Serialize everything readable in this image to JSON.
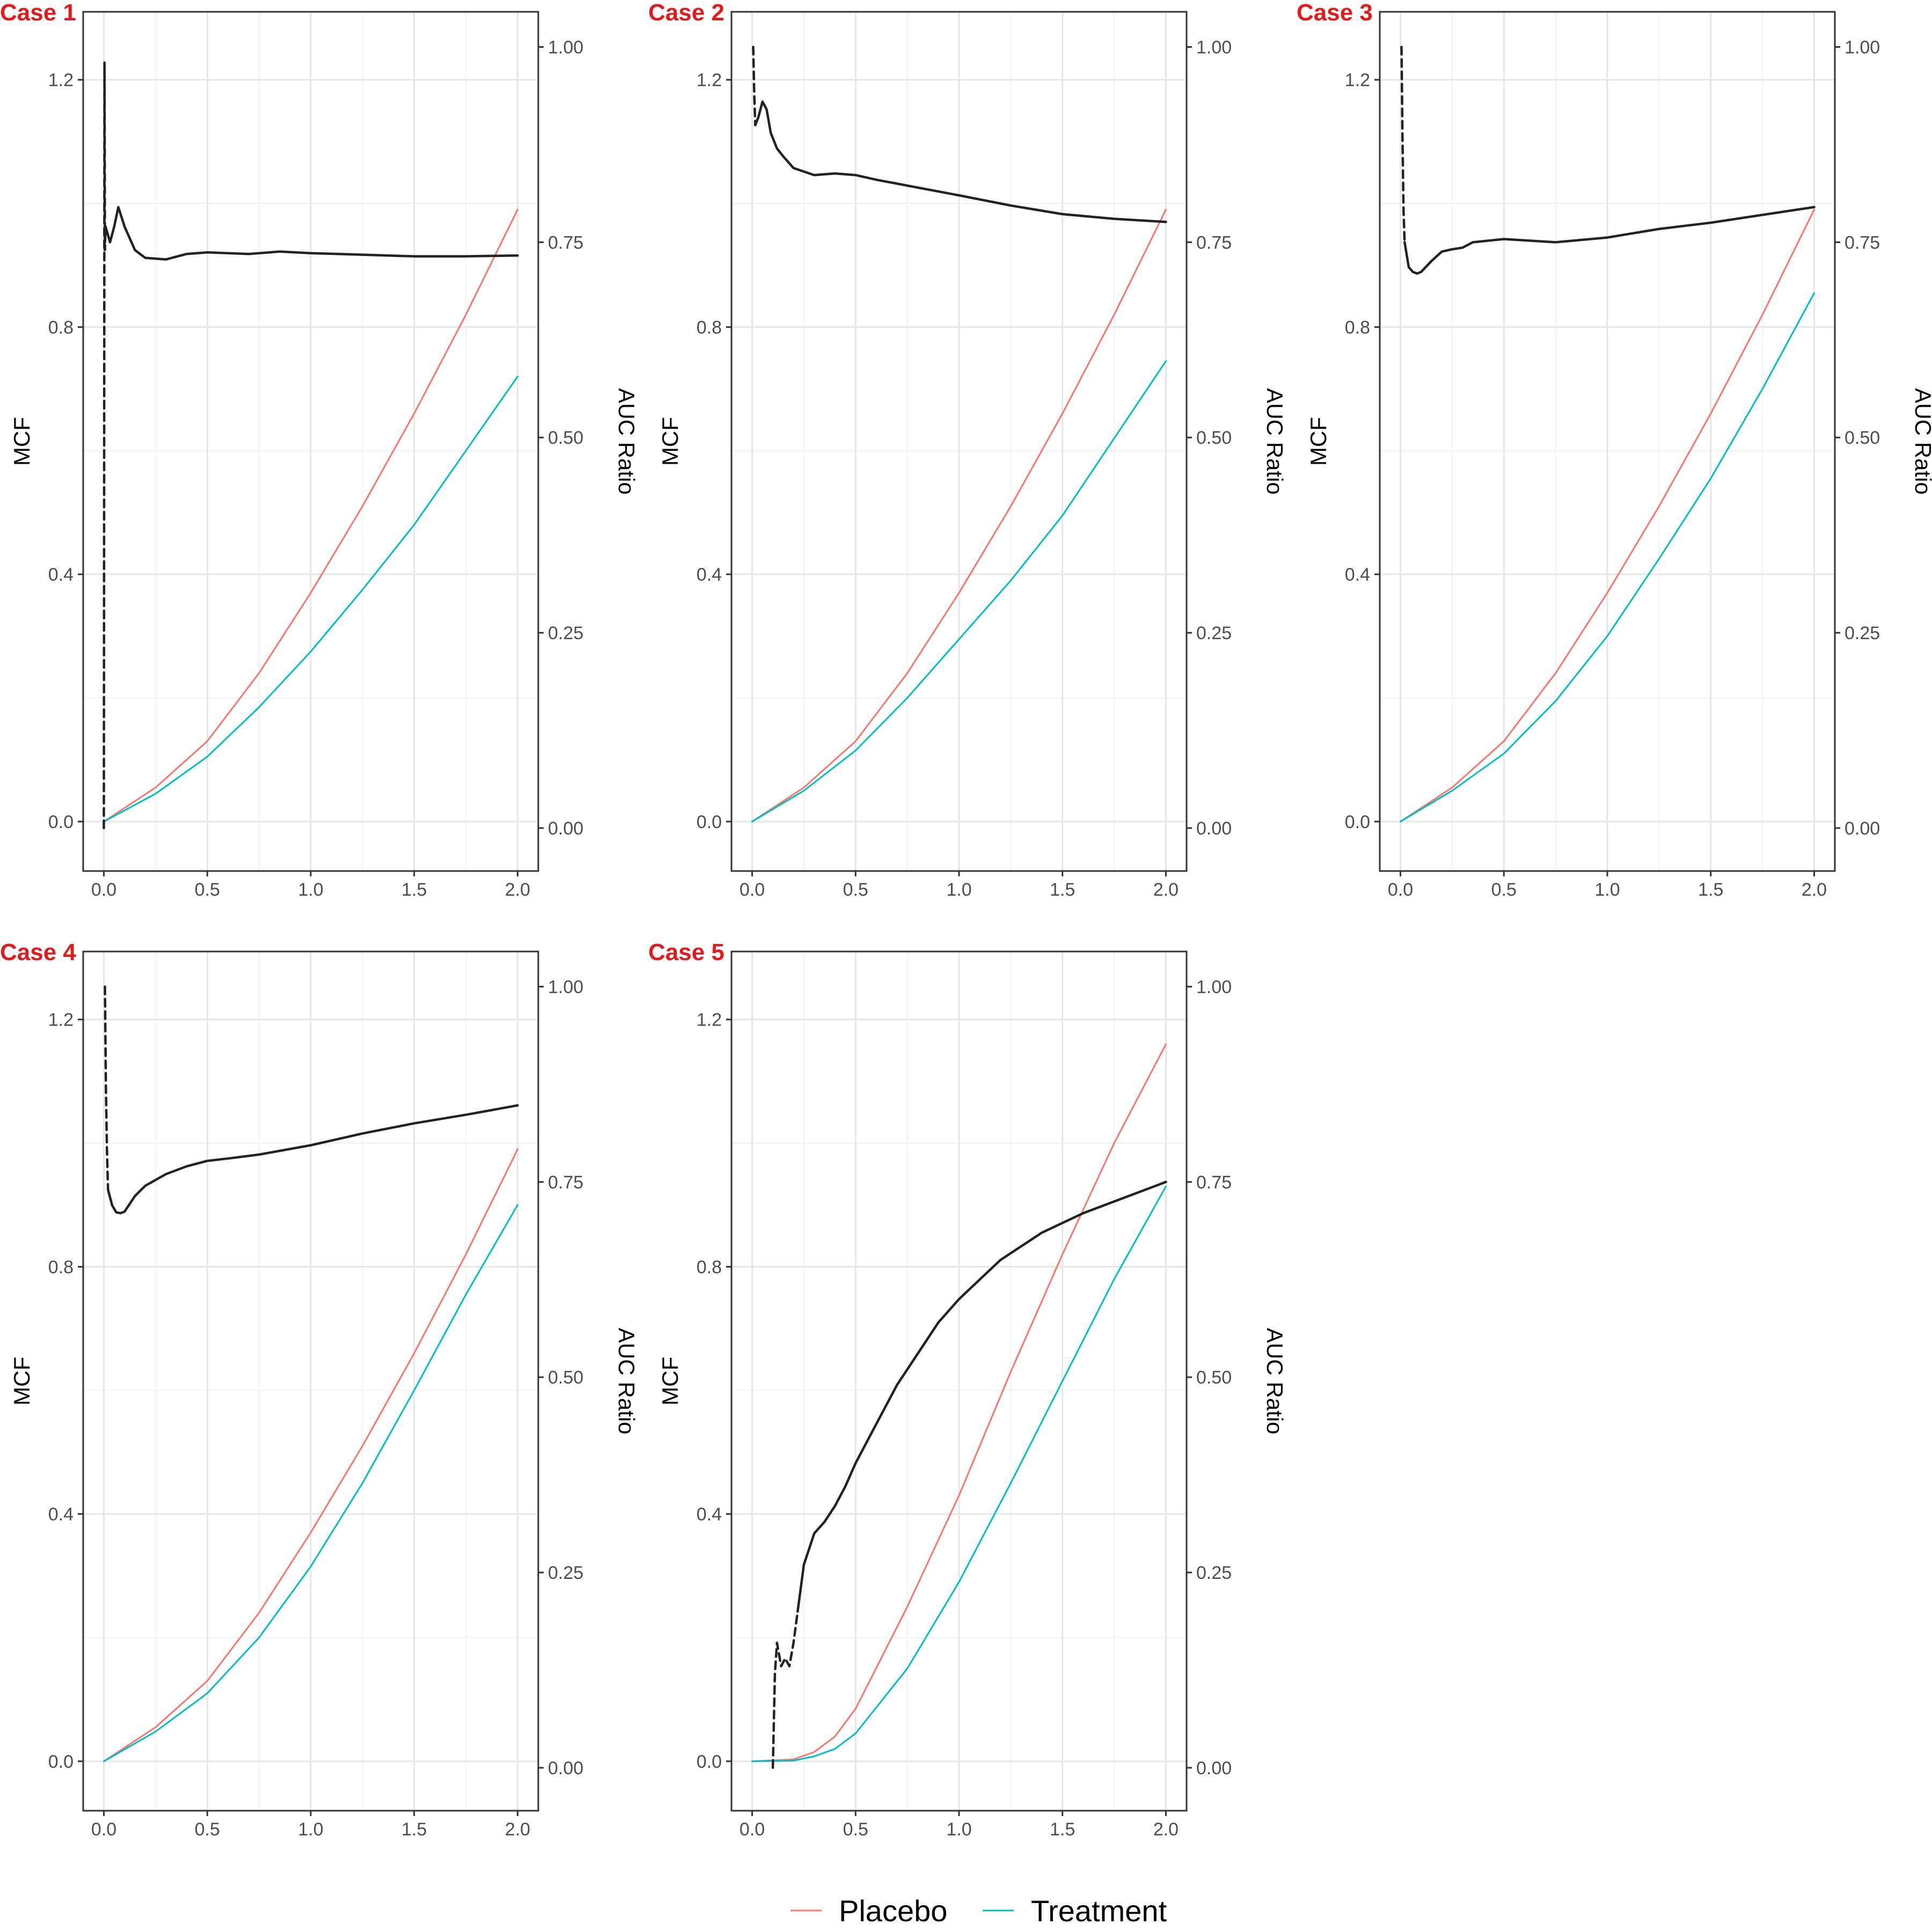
{
  "colors": {
    "placebo": "#F8766D",
    "treatment": "#00BFC4",
    "auc": "#222222",
    "grid_major": "#E6E6E6",
    "grid_minor": "#F2F2F2",
    "frame": "#333333",
    "tag": "#E31A1C"
  },
  "legend": {
    "position": "bottom",
    "items": [
      {
        "name": "Placebo",
        "color": "#F8766D"
      },
      {
        "name": "Treatment",
        "color": "#00BFC4"
      }
    ]
  },
  "chart_data": [
    {
      "tag": "Case 1",
      "type": "line",
      "xlabel": "",
      "ylabel": "MCF",
      "y2label": "AUC Ratio",
      "xlim": [
        -0.1,
        2.1
      ],
      "ylim": [
        -0.08,
        1.31
      ],
      "y2lim": [
        -0.055,
        1.045
      ],
      "x_ticks": [
        0.0,
        0.5,
        1.0,
        1.5,
        2.0
      ],
      "x_tick_labels": [
        "0.0",
        "0.5",
        "1.0",
        "1.5",
        "2.0"
      ],
      "y_ticks": [
        0.0,
        0.4,
        0.8,
        1.2
      ],
      "y_tick_labels": [
        "0.0",
        "0.4",
        "0.8",
        "1.2"
      ],
      "y2_ticks": [
        0.0,
        0.25,
        0.5,
        0.75,
        1.0
      ],
      "y2_tick_labels": [
        "0.00",
        "0.25",
        "0.50",
        "0.75",
        "1.00"
      ],
      "grid": true,
      "series": [
        {
          "name": "Placebo",
          "axis": "left",
          "x": [
            0,
            0.25,
            0.5,
            0.75,
            1.0,
            1.25,
            1.5,
            1.75,
            2.0
          ],
          "values": [
            0,
            0.055,
            0.13,
            0.24,
            0.37,
            0.51,
            0.66,
            0.82,
            0.99
          ]
        },
        {
          "name": "Treatment",
          "axis": "left",
          "x": [
            0,
            0.25,
            0.5,
            0.75,
            1.0,
            1.25,
            1.5,
            1.75,
            2.0
          ],
          "values": [
            0,
            0.045,
            0.105,
            0.185,
            0.275,
            0.375,
            0.48,
            0.6,
            0.72
          ]
        },
        {
          "name": "AUC Ratio (early, dashed)",
          "axis": "right",
          "dash": true,
          "x": [
            0,
            0.003,
            0.005,
            0.008
          ],
          "values": [
            0,
            0.98,
            0.74,
            0.77
          ]
        },
        {
          "name": "AUC Ratio",
          "axis": "right",
          "x": [
            0.008,
            0.03,
            0.05,
            0.07,
            0.1,
            0.15,
            0.2,
            0.3,
            0.4,
            0.5,
            0.7,
            0.85,
            1.0,
            1.25,
            1.5,
            1.75,
            2.0
          ],
          "values": [
            0.77,
            0.75,
            0.77,
            0.795,
            0.77,
            0.74,
            0.73,
            0.728,
            0.735,
            0.737,
            0.735,
            0.738,
            0.736,
            0.734,
            0.732,
            0.732,
            0.733
          ]
        }
      ]
    },
    {
      "tag": "Case 2",
      "type": "line",
      "xlabel": "",
      "ylabel": "MCF",
      "y2label": "AUC Ratio",
      "xlim": [
        -0.1,
        2.1
      ],
      "ylim": [
        -0.08,
        1.31
      ],
      "y2lim": [
        -0.055,
        1.045
      ],
      "x_ticks": [
        0.0,
        0.5,
        1.0,
        1.5,
        2.0
      ],
      "x_tick_labels": [
        "0.0",
        "0.5",
        "1.0",
        "1.5",
        "2.0"
      ],
      "y_ticks": [
        0.0,
        0.4,
        0.8,
        1.2
      ],
      "y_tick_labels": [
        "0.0",
        "0.4",
        "0.8",
        "1.2"
      ],
      "y2_ticks": [
        0.0,
        0.25,
        0.5,
        0.75,
        1.0
      ],
      "y2_tick_labels": [
        "0.00",
        "0.25",
        "0.50",
        "0.75",
        "1.00"
      ],
      "grid": true,
      "series": [
        {
          "name": "Placebo",
          "axis": "left",
          "x": [
            0,
            0.25,
            0.5,
            0.75,
            1.0,
            1.25,
            1.5,
            1.75,
            2.0
          ],
          "values": [
            0,
            0.055,
            0.13,
            0.24,
            0.37,
            0.51,
            0.66,
            0.82,
            0.99
          ]
        },
        {
          "name": "Treatment",
          "axis": "left",
          "x": [
            0,
            0.25,
            0.5,
            0.75,
            1.0,
            1.25,
            1.5,
            1.75,
            2.0
          ],
          "values": [
            0,
            0.05,
            0.115,
            0.2,
            0.295,
            0.39,
            0.495,
            0.62,
            0.745
          ]
        },
        {
          "name": "AUC Ratio (early, dashed)",
          "axis": "right",
          "dash": true,
          "x": [
            0.005,
            0.01,
            0.015
          ],
          "values": [
            1.0,
            0.94,
            0.9
          ]
        },
        {
          "name": "AUC Ratio",
          "axis": "right",
          "x": [
            0.015,
            0.03,
            0.05,
            0.07,
            0.09,
            0.12,
            0.15,
            0.2,
            0.3,
            0.4,
            0.5,
            0.6,
            0.8,
            1.0,
            1.25,
            1.5,
            1.75,
            2.0
          ],
          "values": [
            0.9,
            0.91,
            0.93,
            0.92,
            0.89,
            0.87,
            0.86,
            0.845,
            0.836,
            0.838,
            0.836,
            0.83,
            0.82,
            0.81,
            0.797,
            0.786,
            0.78,
            0.776
          ]
        }
      ]
    },
    {
      "tag": "Case 3",
      "type": "line",
      "xlabel": "",
      "ylabel": "MCF",
      "y2label": "AUC Ratio",
      "xlim": [
        -0.1,
        2.1
      ],
      "ylim": [
        -0.08,
        1.31
      ],
      "y2lim": [
        -0.055,
        1.045
      ],
      "x_ticks": [
        0.0,
        0.5,
        1.0,
        1.5,
        2.0
      ],
      "x_tick_labels": [
        "0.0",
        "0.5",
        "1.0",
        "1.5",
        "2.0"
      ],
      "y_ticks": [
        0.0,
        0.4,
        0.8,
        1.2
      ],
      "y_tick_labels": [
        "0.0",
        "0.4",
        "0.8",
        "1.2"
      ],
      "y2_ticks": [
        0.0,
        0.25,
        0.5,
        0.75,
        1.0
      ],
      "y2_tick_labels": [
        "0.00",
        "0.25",
        "0.50",
        "0.75",
        "1.00"
      ],
      "grid": true,
      "series": [
        {
          "name": "Placebo",
          "axis": "left",
          "x": [
            0,
            0.25,
            0.5,
            0.75,
            1.0,
            1.25,
            1.5,
            1.75,
            2.0
          ],
          "values": [
            0,
            0.055,
            0.13,
            0.24,
            0.37,
            0.51,
            0.66,
            0.82,
            0.99
          ]
        },
        {
          "name": "Treatment",
          "axis": "left",
          "x": [
            0,
            0.25,
            0.5,
            0.75,
            1.0,
            1.25,
            1.5,
            1.75,
            2.0
          ],
          "values": [
            0,
            0.05,
            0.11,
            0.195,
            0.3,
            0.425,
            0.555,
            0.7,
            0.855
          ]
        },
        {
          "name": "AUC Ratio (early, dashed)",
          "axis": "right",
          "dash": true,
          "x": [
            0.005,
            0.01,
            0.015,
            0.02
          ],
          "values": [
            1.0,
            0.88,
            0.79,
            0.75
          ]
        },
        {
          "name": "AUC Ratio",
          "axis": "right",
          "x": [
            0.02,
            0.04,
            0.06,
            0.08,
            0.1,
            0.15,
            0.2,
            0.25,
            0.3,
            0.35,
            0.5,
            0.75,
            1.0,
            1.25,
            1.5,
            1.75,
            2.0
          ],
          "values": [
            0.75,
            0.718,
            0.712,
            0.71,
            0.712,
            0.726,
            0.738,
            0.741,
            0.743,
            0.75,
            0.754,
            0.75,
            0.756,
            0.767,
            0.775,
            0.785,
            0.795
          ]
        }
      ]
    },
    {
      "tag": "Case 4",
      "type": "line",
      "xlabel": "",
      "ylabel": "MCF",
      "y2label": "AUC Ratio",
      "xlim": [
        -0.1,
        2.1
      ],
      "ylim": [
        -0.08,
        1.31
      ],
      "y2lim": [
        -0.055,
        1.045
      ],
      "x_ticks": [
        0.0,
        0.5,
        1.0,
        1.5,
        2.0
      ],
      "x_tick_labels": [
        "0.0",
        "0.5",
        "1.0",
        "1.5",
        "2.0"
      ],
      "y_ticks": [
        0.0,
        0.4,
        0.8,
        1.2
      ],
      "y_tick_labels": [
        "0.0",
        "0.4",
        "0.8",
        "1.2"
      ],
      "y2_ticks": [
        0.0,
        0.25,
        0.5,
        0.75,
        1.0
      ],
      "y2_tick_labels": [
        "0.00",
        "0.25",
        "0.50",
        "0.75",
        "1.00"
      ],
      "grid": true,
      "series": [
        {
          "name": "Placebo",
          "axis": "left",
          "x": [
            0,
            0.25,
            0.5,
            0.75,
            1.0,
            1.25,
            1.5,
            1.75,
            2.0
          ],
          "values": [
            0,
            0.055,
            0.13,
            0.24,
            0.37,
            0.51,
            0.66,
            0.82,
            0.99
          ]
        },
        {
          "name": "Treatment",
          "axis": "left",
          "x": [
            0,
            0.25,
            0.5,
            0.75,
            1.0,
            1.25,
            1.5,
            1.75,
            2.0
          ],
          "values": [
            0,
            0.048,
            0.11,
            0.2,
            0.315,
            0.45,
            0.6,
            0.755,
            0.9
          ]
        },
        {
          "name": "AUC Ratio (early, dashed)",
          "axis": "right",
          "dash": true,
          "x": [
            0.005,
            0.01,
            0.015,
            0.02
          ],
          "values": [
            1.0,
            0.87,
            0.79,
            0.74
          ]
        },
        {
          "name": "AUC Ratio",
          "axis": "right",
          "x": [
            0.02,
            0.04,
            0.06,
            0.08,
            0.1,
            0.15,
            0.2,
            0.3,
            0.4,
            0.5,
            0.6,
            0.75,
            1.0,
            1.25,
            1.5,
            1.75,
            2.0
          ],
          "values": [
            0.74,
            0.72,
            0.711,
            0.71,
            0.712,
            0.732,
            0.745,
            0.76,
            0.77,
            0.777,
            0.78,
            0.785,
            0.797,
            0.812,
            0.825,
            0.836,
            0.848
          ]
        }
      ]
    },
    {
      "tag": "Case 5",
      "type": "line",
      "xlabel": "",
      "ylabel": "MCF",
      "y2label": "AUC Ratio",
      "xlim": [
        -0.1,
        2.1
      ],
      "ylim": [
        -0.08,
        1.31
      ],
      "y2lim": [
        -0.055,
        1.045
      ],
      "x_ticks": [
        0.0,
        0.5,
        1.0,
        1.5,
        2.0
      ],
      "x_tick_labels": [
        "0.0",
        "0.5",
        "1.0",
        "1.5",
        "2.0"
      ],
      "y_ticks": [
        0.0,
        0.4,
        0.8,
        1.2
      ],
      "y_tick_labels": [
        "0.0",
        "0.4",
        "0.8",
        "1.2"
      ],
      "y2_ticks": [
        0.0,
        0.25,
        0.5,
        0.75,
        1.0
      ],
      "y2_tick_labels": [
        "0.00",
        "0.25",
        "0.50",
        "0.75",
        "1.00"
      ],
      "grid": true,
      "series": [
        {
          "name": "Placebo",
          "axis": "left",
          "x": [
            0,
            0.2,
            0.3,
            0.4,
            0.5,
            0.75,
            1.0,
            1.25,
            1.5,
            1.75,
            2.0
          ],
          "values": [
            0,
            0.003,
            0.015,
            0.04,
            0.085,
            0.25,
            0.43,
            0.63,
            0.82,
            1.0,
            1.16
          ]
        },
        {
          "name": "Treatment",
          "axis": "left",
          "x": [
            0,
            0.2,
            0.3,
            0.4,
            0.5,
            0.75,
            1.0,
            1.25,
            1.5,
            1.75,
            2.0
          ],
          "values": [
            0,
            0.001,
            0.008,
            0.02,
            0.045,
            0.15,
            0.29,
            0.45,
            0.615,
            0.78,
            0.93
          ]
        },
        {
          "name": "AUC Ratio (early, dashed)",
          "axis": "right",
          "dash": true,
          "x": [
            0.1,
            0.11,
            0.12,
            0.14,
            0.16,
            0.18,
            0.2,
            0.22
          ],
          "values": [
            0,
            0.12,
            0.16,
            0.13,
            0.14,
            0.13,
            0.16,
            0.2
          ]
        },
        {
          "name": "AUC Ratio",
          "axis": "right",
          "x": [
            0.22,
            0.25,
            0.3,
            0.35,
            0.4,
            0.45,
            0.5,
            0.6,
            0.7,
            0.8,
            0.9,
            1.0,
            1.2,
            1.4,
            1.6,
            1.8,
            2.0
          ],
          "values": [
            0.2,
            0.26,
            0.3,
            0.315,
            0.335,
            0.36,
            0.39,
            0.44,
            0.49,
            0.53,
            0.57,
            0.6,
            0.65,
            0.685,
            0.71,
            0.73,
            0.75
          ]
        }
      ]
    }
  ]
}
